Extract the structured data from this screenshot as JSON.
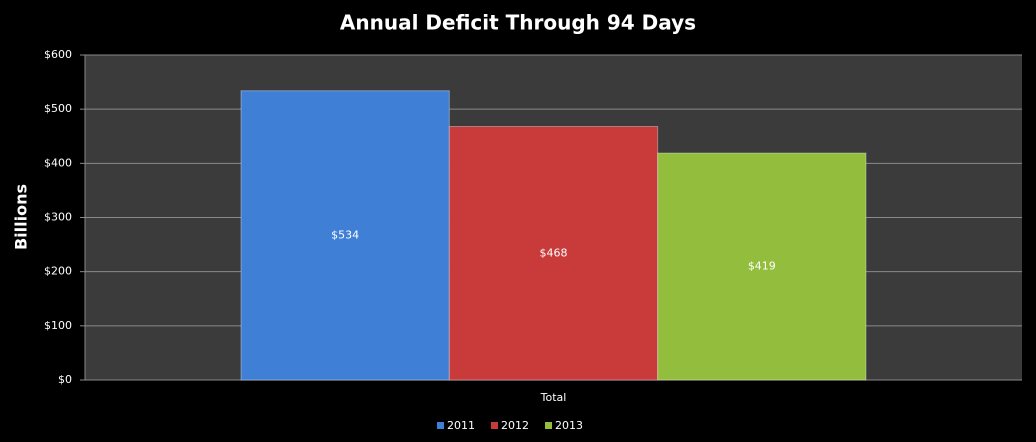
{
  "chart_data": {
    "type": "bar",
    "title": "Annual Deficit Through 94 Days",
    "y_label": "Billions",
    "categories": [
      "Total"
    ],
    "series": [
      {
        "name": "2011",
        "color": "#3f7fd6",
        "values": [
          534
        ],
        "value_labels": [
          "$534"
        ]
      },
      {
        "name": "2012",
        "color": "#c93a3b",
        "values": [
          468
        ],
        "value_labels": [
          "$468"
        ]
      },
      {
        "name": "2013",
        "color": "#93bd3c",
        "values": [
          419
        ],
        "value_labels": [
          "$419"
        ]
      }
    ],
    "ylim": [
      0,
      600
    ],
    "yticks": [
      {
        "value": 0,
        "label": "$0"
      },
      {
        "value": 100,
        "label": "$100"
      },
      {
        "value": 200,
        "label": "$200"
      },
      {
        "value": 300,
        "label": "$300"
      },
      {
        "value": 400,
        "label": "$400"
      },
      {
        "value": 500,
        "label": "$500"
      },
      {
        "value": 600,
        "label": "$600"
      }
    ],
    "grid": true,
    "legend": "bottom"
  }
}
